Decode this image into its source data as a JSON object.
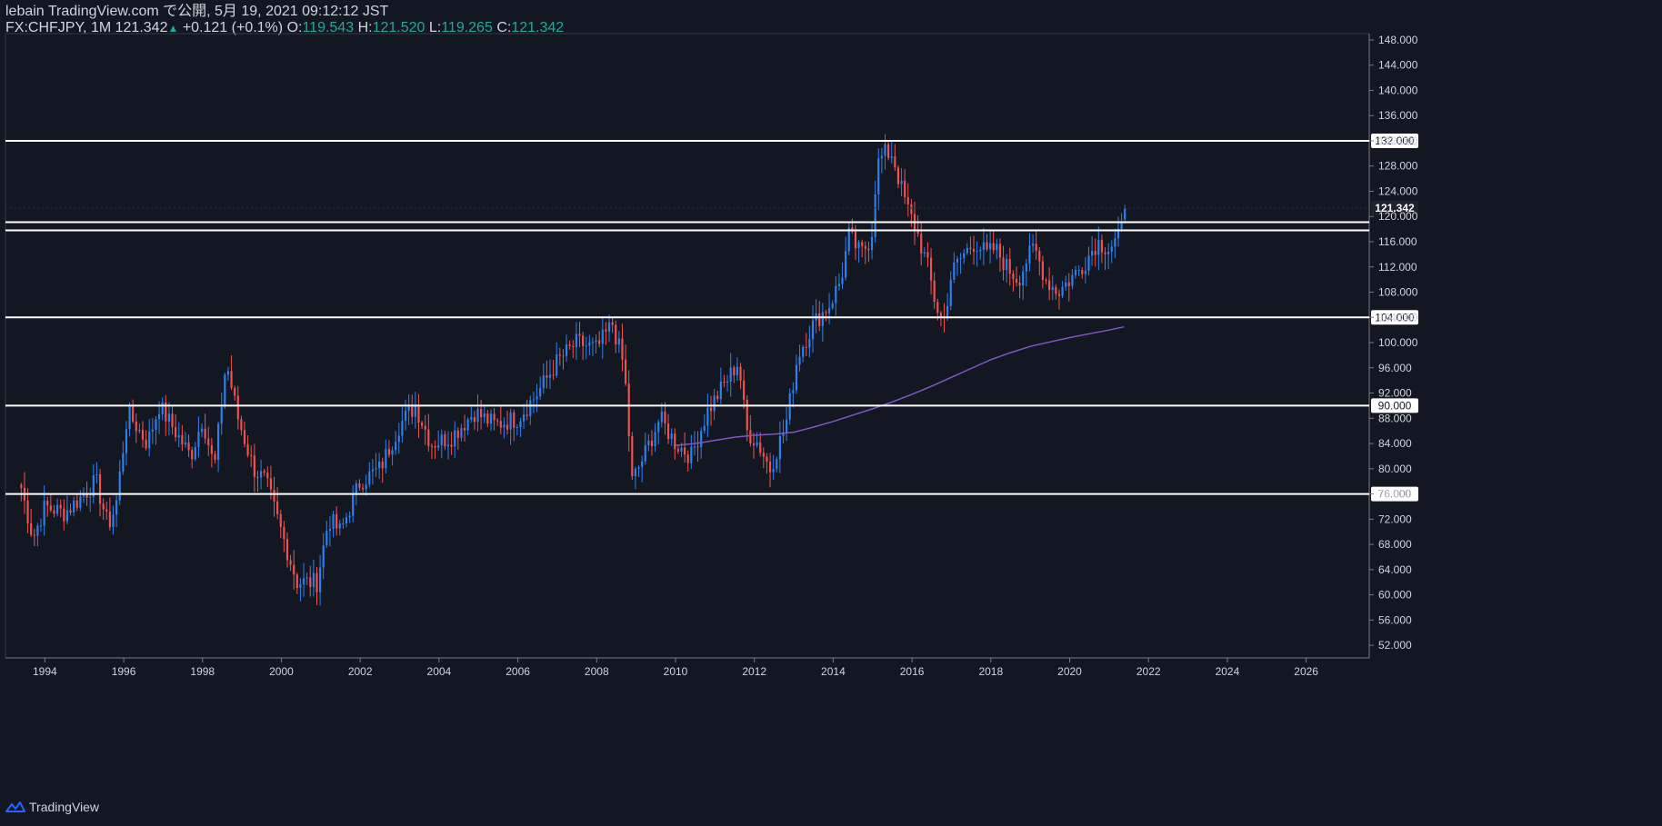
{
  "header": {
    "line1": "lebain TradingView.com で公開, 5月 19, 2021 09:12:12 JST",
    "symbol": "FX:CHFJPY, 1M",
    "last": "121.342",
    "change": "+0.121 (+0.1%)",
    "o_label": "O:",
    "o_value": "119.543",
    "h_label": "H:",
    "h_value": "121.520",
    "l_label": "L:",
    "l_value": "119.265",
    "c_label": "C:",
    "c_value": "121.342"
  },
  "footer": {
    "brand": "TradingView",
    "logo_icon": "tradingview-logo-icon"
  },
  "colors": {
    "background": "#131722",
    "up": "#2f80ed",
    "down": "#ef5350",
    "ma": "#7e57c2",
    "level": "#ffffff",
    "text": "#d1d4dc"
  },
  "chart_data": {
    "type": "candlestick",
    "x_ticks": [
      "1994",
      "1996",
      "1998",
      "2000",
      "2002",
      "2004",
      "2006",
      "2008",
      "2010",
      "2012",
      "2014",
      "2016",
      "2018",
      "2020",
      "2022",
      "2024",
      "2026"
    ],
    "y_ticks": [
      "52.000",
      "56.000",
      "60.000",
      "64.000",
      "68.000",
      "72.000",
      "76.000",
      "80.000",
      "84.000",
      "88.000",
      "92.000",
      "96.000",
      "100.000",
      "104.000",
      "108.000",
      "112.000",
      "116.000",
      "120.000",
      "124.000",
      "128.000",
      "132.000",
      "136.000",
      "140.000",
      "144.000",
      "148.000"
    ],
    "ylim": [
      50,
      149
    ],
    "xlim": [
      1993.0,
      2027.6
    ],
    "horizontal_levels": [
      {
        "value": 132.0,
        "label": "132.000"
      },
      {
        "value": 119.1,
        "label": ""
      },
      {
        "value": 117.8,
        "label": ""
      },
      {
        "value": 104.0,
        "label": "104.000"
      },
      {
        "value": 90.0,
        "label": "90.000"
      },
      {
        "value": 76.0,
        "label": "76.000"
      }
    ],
    "last_price": {
      "value": 121.342,
      "label": "121.342"
    },
    "anchors": [
      [
        1993.4,
        77
      ],
      [
        1993.7,
        69
      ],
      [
        1994.0,
        74
      ],
      [
        1994.5,
        73
      ],
      [
        1995.0,
        76
      ],
      [
        1995.3,
        78
      ],
      [
        1995.6,
        71
      ],
      [
        1995.8,
        74
      ],
      [
        1996.1,
        89
      ],
      [
        1996.6,
        84
      ],
      [
        1996.9,
        90
      ],
      [
        1997.4,
        85
      ],
      [
        1997.7,
        82
      ],
      [
        1998.0,
        88
      ],
      [
        1998.3,
        80
      ],
      [
        1998.6,
        97
      ],
      [
        1998.9,
        88
      ],
      [
        1999.3,
        80
      ],
      [
        1999.6,
        78
      ],
      [
        2000.0,
        70
      ],
      [
        2000.4,
        62
      ],
      [
        2000.9,
        62
      ],
      [
        2001.2,
        72
      ],
      [
        2001.5,
        70
      ],
      [
        2002.0,
        78
      ],
      [
        2002.5,
        80
      ],
      [
        2003.0,
        87
      ],
      [
        2003.4,
        90
      ],
      [
        2003.8,
        84
      ],
      [
        2004.3,
        85
      ],
      [
        2004.9,
        89
      ],
      [
        2005.4,
        87
      ],
      [
        2006.0,
        88
      ],
      [
        2006.5,
        92
      ],
      [
        2007.0,
        97
      ],
      [
        2007.5,
        100
      ],
      [
        2008.0,
        99
      ],
      [
        2008.4,
        103
      ],
      [
        2008.7,
        96
      ],
      [
        2008.9,
        78
      ],
      [
        2009.2,
        82
      ],
      [
        2009.6,
        88
      ],
      [
        2010.0,
        84
      ],
      [
        2010.4,
        82
      ],
      [
        2010.8,
        89
      ],
      [
        2011.2,
        93
      ],
      [
        2011.6,
        97
      ],
      [
        2011.8,
        86
      ],
      [
        2012.1,
        84
      ],
      [
        2012.4,
        80
      ],
      [
        2012.8,
        87
      ],
      [
        2013.1,
        98
      ],
      [
        2013.5,
        103
      ],
      [
        2013.9,
        106
      ],
      [
        2014.2,
        110
      ],
      [
        2014.4,
        117
      ],
      [
        2014.7,
        114
      ],
      [
        2014.9,
        116
      ],
      [
        2015.0,
        118
      ],
      [
        2015.1,
        128
      ],
      [
        2015.3,
        130
      ],
      [
        2015.5,
        130
      ],
      [
        2015.7,
        125
      ],
      [
        2015.9,
        121
      ],
      [
        2016.1,
        118
      ],
      [
        2016.4,
        112
      ],
      [
        2016.6,
        106
      ],
      [
        2016.8,
        103
      ],
      [
        2017.0,
        111
      ],
      [
        2017.3,
        114
      ],
      [
        2017.6,
        116
      ],
      [
        2017.9,
        114
      ],
      [
        2018.1,
        115
      ],
      [
        2018.4,
        112
      ],
      [
        2018.7,
        110
      ],
      [
        2018.9,
        113
      ],
      [
        2019.1,
        115
      ],
      [
        2019.4,
        110
      ],
      [
        2019.7,
        108
      ],
      [
        2020.0,
        110
      ],
      [
        2020.3,
        112
      ],
      [
        2020.7,
        116
      ],
      [
        2021.0,
        115
      ],
      [
        2021.3,
        117
      ],
      [
        2021.38,
        121.342
      ]
    ],
    "ma_series": [
      [
        2010.0,
        83.7
      ],
      [
        2010.5,
        84.0
      ],
      [
        2011.0,
        84.5
      ],
      [
        2011.5,
        85.0
      ],
      [
        2012.0,
        85.3
      ],
      [
        2012.5,
        85.5
      ],
      [
        2013.0,
        85.8
      ],
      [
        2013.5,
        86.6
      ],
      [
        2014.0,
        87.5
      ],
      [
        2014.5,
        88.5
      ],
      [
        2015.0,
        89.5
      ],
      [
        2015.5,
        90.6
      ],
      [
        2016.0,
        91.8
      ],
      [
        2016.5,
        93.1
      ],
      [
        2017.0,
        94.5
      ],
      [
        2017.5,
        95.9
      ],
      [
        2018.0,
        97.3
      ],
      [
        2018.5,
        98.4
      ],
      [
        2019.0,
        99.4
      ],
      [
        2019.5,
        100.1
      ],
      [
        2020.0,
        100.8
      ],
      [
        2020.5,
        101.4
      ],
      [
        2021.0,
        102.0
      ],
      [
        2021.38,
        102.5
      ]
    ]
  }
}
